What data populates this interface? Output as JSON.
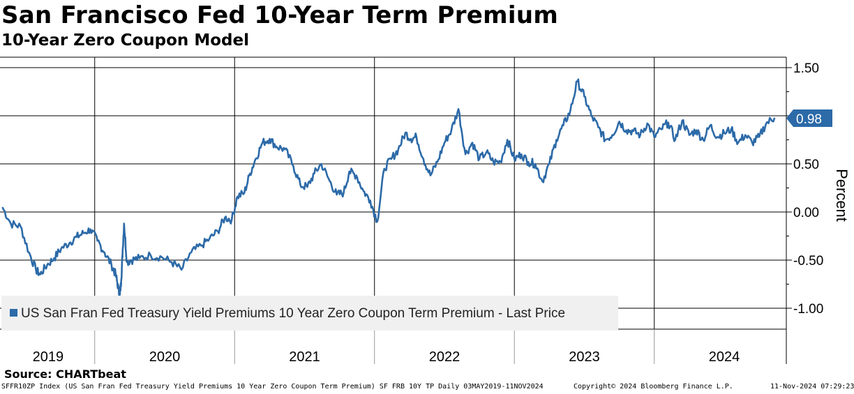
{
  "chart_data": {
    "type": "line",
    "title": "San Francisco Fed 10-Year Term Premium",
    "subtitle": "10-Year Zero Coupon Model",
    "ylabel": "Percent",
    "xlabel": "",
    "ylim": [
      -1.2,
      1.6
    ],
    "y_ticks": [
      1.5,
      1.0,
      0.5,
      0.0,
      -0.5,
      -1.0
    ],
    "y_tick_labels": [
      "1.50",
      "",
      "0.50",
      "0.00",
      "-0.50",
      "-1.00"
    ],
    "x_year_labels": [
      "2019",
      "2020",
      "2021",
      "2022",
      "2023",
      "2024"
    ],
    "grid": true,
    "legend_position": "bottom-left",
    "last_value_label": "0.98",
    "series": [
      {
        "name": "US San Fran Fed Treasury Yield Premiums 10 Year Zero Coupon Term Premium - Last Price",
        "color": "#2c6aa8",
        "x": [
          2019.34,
          2019.4,
          2019.47,
          2019.53,
          2019.58,
          2019.61,
          2019.66,
          2019.71,
          2019.76,
          2019.82,
          2019.87,
          2019.92,
          2019.97,
          2020.02,
          2020.07,
          2020.12,
          2020.15,
          2020.17,
          2020.18,
          2020.19,
          2020.2,
          2020.21,
          2020.23,
          2020.26,
          2020.32,
          2020.4,
          2020.48,
          2020.55,
          2020.62,
          2020.69,
          2020.76,
          2020.82,
          2020.88,
          2020.93,
          2020.98,
          2021.02,
          2021.07,
          2021.11,
          2021.15,
          2021.2,
          2021.25,
          2021.3,
          2021.36,
          2021.42,
          2021.47,
          2021.52,
          2021.57,
          2021.62,
          2021.68,
          2021.73,
          2021.78,
          2021.82,
          2021.87,
          2021.92,
          2021.97,
          2022.02,
          2022.07,
          2022.12,
          2022.17,
          2022.22,
          2022.26,
          2022.3,
          2022.35,
          2022.4,
          2022.45,
          2022.5,
          2022.55,
          2022.6,
          2022.65,
          2022.7,
          2022.75,
          2022.8,
          2022.85,
          2022.9,
          2022.95,
          2023.0,
          2023.05,
          2023.1,
          2023.15,
          2023.2,
          2023.25,
          2023.3,
          2023.35,
          2023.4,
          2023.45,
          2023.5,
          2023.55,
          2023.6,
          2023.65,
          2023.7,
          2023.75,
          2023.8,
          2023.85,
          2023.9,
          2023.95,
          2024.0,
          2024.05,
          2024.1,
          2024.15,
          2024.2,
          2024.25,
          2024.3,
          2024.35,
          2024.4,
          2024.45,
          2024.5,
          2024.55,
          2024.6,
          2024.65,
          2024.7,
          2024.75,
          2024.8,
          2024.86
        ],
        "y": [
          0.05,
          -0.12,
          -0.15,
          -0.42,
          -0.6,
          -0.65,
          -0.55,
          -0.48,
          -0.38,
          -0.32,
          -0.26,
          -0.22,
          -0.18,
          -0.3,
          -0.42,
          -0.55,
          -0.65,
          -0.8,
          -0.86,
          -0.7,
          -0.4,
          -0.12,
          -0.52,
          -0.5,
          -0.48,
          -0.45,
          -0.47,
          -0.52,
          -0.6,
          -0.42,
          -0.35,
          -0.28,
          -0.2,
          -0.06,
          -0.08,
          0.16,
          0.2,
          0.4,
          0.55,
          0.72,
          0.76,
          0.68,
          0.65,
          0.48,
          0.28,
          0.26,
          0.4,
          0.5,
          0.32,
          0.18,
          0.2,
          0.42,
          0.38,
          0.22,
          0.12,
          -0.1,
          0.45,
          0.55,
          0.65,
          0.82,
          0.76,
          0.78,
          0.55,
          0.38,
          0.52,
          0.72,
          0.85,
          1.07,
          0.6,
          0.72,
          0.55,
          0.62,
          0.52,
          0.52,
          0.75,
          0.55,
          0.6,
          0.52,
          0.5,
          0.32,
          0.5,
          0.75,
          0.9,
          1.05,
          1.36,
          1.2,
          1.0,
          0.88,
          0.75,
          0.8,
          0.94,
          0.85,
          0.84,
          0.8,
          0.92,
          0.78,
          0.86,
          0.93,
          0.75,
          0.95,
          0.8,
          0.85,
          0.75,
          0.9,
          0.78,
          0.82,
          0.86,
          0.72,
          0.8,
          0.72,
          0.78,
          0.92,
          0.98
        ]
      }
    ]
  },
  "footer": {
    "source": "Source: CHARTbeat",
    "index_info": "SFFR10ZP Index (US San Fran Fed Treasury Yield Premiums 10 Year Zero Coupon Term Premium) SF FRB 10Y TP  Daily 03MAY2019-11NOV2024",
    "copyright": "Copyright© 2024 Bloomberg Finance L.P.",
    "timestamp": "11-Nov-2024 07:29:23"
  }
}
